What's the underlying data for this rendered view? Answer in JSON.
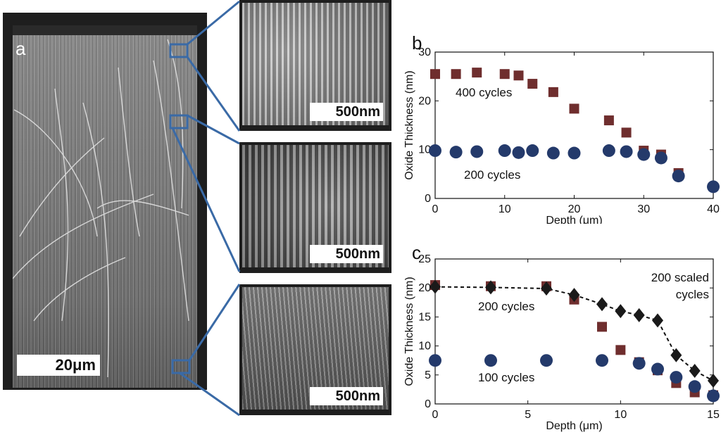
{
  "figure": {
    "panel_a": {
      "letter": "a",
      "scale_bar": "20μm"
    },
    "insets": [
      {
        "scale_bar": "500nm"
      },
      {
        "scale_bar": "500nm"
      },
      {
        "scale_bar": "500nm"
      }
    ],
    "colors": {
      "connector": "#3a6aa6",
      "square_marker": "#6f2e2e",
      "circle_marker": "#243a6b",
      "diamond_marker": "#1a1a1a"
    }
  },
  "chart_data": [
    {
      "panel": "b",
      "type": "scatter",
      "xlabel": "Depth (μm)",
      "ylabel": "Oxide Thickness (nm)",
      "xlim": [
        0,
        40
      ],
      "ylim": [
        0,
        30
      ],
      "xticks": [
        0,
        10,
        20,
        30,
        40
      ],
      "yticks": [
        0,
        10,
        20,
        30
      ],
      "annotations": [
        "400 cycles",
        "200 cycles"
      ],
      "series": [
        {
          "marker": "square",
          "points": [
            [
              0,
              25.5
            ],
            [
              3,
              25.5
            ],
            [
              6,
              25.8
            ],
            [
              10,
              25.5
            ],
            [
              12,
              25.2
            ],
            [
              14,
              23.5
            ],
            [
              17,
              21.8
            ],
            [
              20,
              18.4
            ],
            [
              25,
              16
            ],
            [
              27.5,
              13.5
            ],
            [
              30,
              9.8
            ],
            [
              32.5,
              9
            ],
            [
              35,
              5.2
            ]
          ]
        },
        {
          "marker": "circle",
          "points": [
            [
              0,
              9.8
            ],
            [
              3,
              9.5
            ],
            [
              6,
              9.6
            ],
            [
              10,
              9.8
            ],
            [
              12,
              9.4
            ],
            [
              14,
              9.8
            ],
            [
              17,
              9.3
            ],
            [
              20,
              9.3
            ],
            [
              25,
              9.8
            ],
            [
              27.5,
              9.6
            ],
            [
              30,
              9
            ],
            [
              32.5,
              8.3
            ],
            [
              35,
              4.6
            ],
            [
              40,
              2.4
            ]
          ]
        }
      ]
    },
    {
      "panel": "c",
      "type": "scatter",
      "xlabel": "Depth (μm)",
      "ylabel": "Oxide Thickness (nm)",
      "xlim": [
        0,
        15
      ],
      "ylim": [
        0,
        25
      ],
      "xticks": [
        0,
        5,
        10,
        15
      ],
      "yticks": [
        0,
        5,
        10,
        15,
        20,
        25
      ],
      "annotations": [
        "200 cycles",
        "100 cycles",
        "200 scaled",
        "cycles"
      ],
      "series": [
        {
          "marker": "square",
          "points": [
            [
              0,
              20.5
            ],
            [
              3,
              20.3
            ],
            [
              6,
              20.3
            ],
            [
              7.5,
              18
            ],
            [
              9,
              13.3
            ],
            [
              10,
              9.3
            ],
            [
              11,
              7.2
            ],
            [
              12,
              5.8
            ],
            [
              13,
              3.6
            ],
            [
              14,
              2
            ],
            [
              15,
              1.5
            ]
          ]
        },
        {
          "marker": "circle",
          "points": [
            [
              0,
              7.5
            ],
            [
              3,
              7.5
            ],
            [
              6,
              7.5
            ],
            [
              9,
              7.5
            ],
            [
              11,
              7
            ],
            [
              12,
              6
            ],
            [
              13,
              4.6
            ],
            [
              14,
              3
            ],
            [
              15,
              1.4
            ]
          ]
        },
        {
          "marker": "diamond",
          "line": "dashed",
          "points": [
            [
              0,
              20.2
            ],
            [
              3,
              20.1
            ],
            [
              6,
              19.9
            ],
            [
              7.5,
              18.8
            ],
            [
              9,
              17.2
            ],
            [
              10,
              16
            ],
            [
              11,
              15.3
            ],
            [
              12,
              14.4
            ],
            [
              13,
              8.4
            ],
            [
              14,
              5.7
            ],
            [
              15,
              4
            ]
          ]
        }
      ]
    }
  ]
}
